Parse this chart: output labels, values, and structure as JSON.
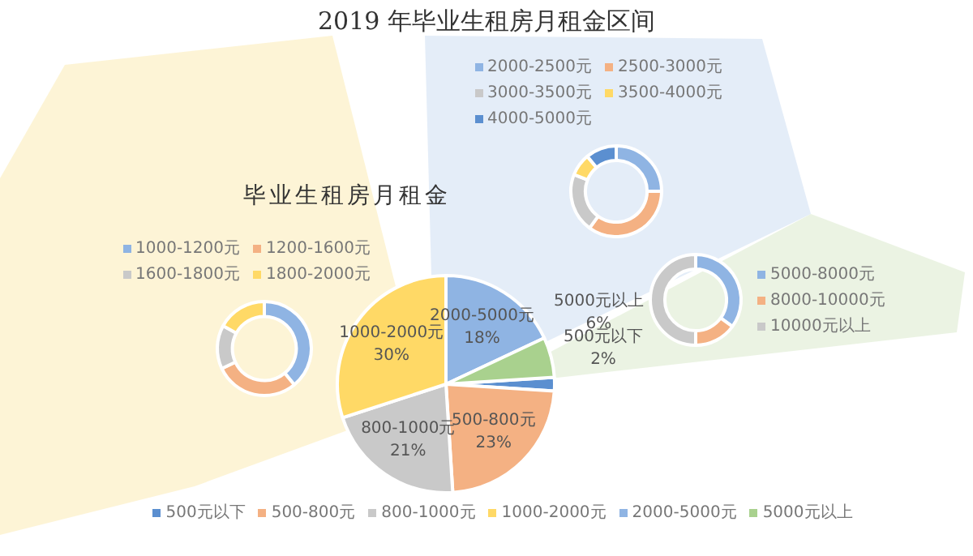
{
  "chart_data": [
    {
      "type": "pie",
      "title": "2019 年毕业生租房月租金区间",
      "subtitle": "毕业生租房月租金",
      "categories": [
        "500元以下",
        "500-800元",
        "800-1000元",
        "1000-2000元",
        "2000-5000元",
        "5000元以上"
      ],
      "values": [
        2,
        23,
        21,
        30,
        18,
        6
      ],
      "colors": [
        "#5b8fd0",
        "#f4b183",
        "#c9c9c9",
        "#ffd966",
        "#8fb4e3",
        "#a9d18e"
      ],
      "value_labels": [
        "2%",
        "23%",
        "21%",
        "30%",
        "18%",
        "6%"
      ],
      "legend": "bottom"
    },
    {
      "type": "donut",
      "categories": [
        "1000-1200元",
        "1200-1600元",
        "1600-1800元",
        "1800-2000元"
      ],
      "values": [
        39,
        29,
        15,
        17
      ],
      "colors": [
        "#8fb4e3",
        "#f4b183",
        "#c9c9c9",
        "#ffd966"
      ],
      "legend": "top"
    },
    {
      "type": "donut",
      "categories": [
        "2000-2500元",
        "2500-3000元",
        "3000-3500元",
        "3500-4000元",
        "4000-5000元"
      ],
      "values": [
        25,
        35,
        21,
        8,
        11
      ],
      "colors": [
        "#8fb4e3",
        "#f4b183",
        "#c9c9c9",
        "#ffd966",
        "#5b8fd0"
      ],
      "legend": "top"
    },
    {
      "type": "donut",
      "categories": [
        "5000-8000元",
        "8000-10000元",
        "10000元以上"
      ],
      "values": [
        35,
        15,
        50
      ],
      "colors": [
        "#8fb4e3",
        "#f4b183",
        "#c9c9c9"
      ],
      "legend": "right"
    }
  ]
}
